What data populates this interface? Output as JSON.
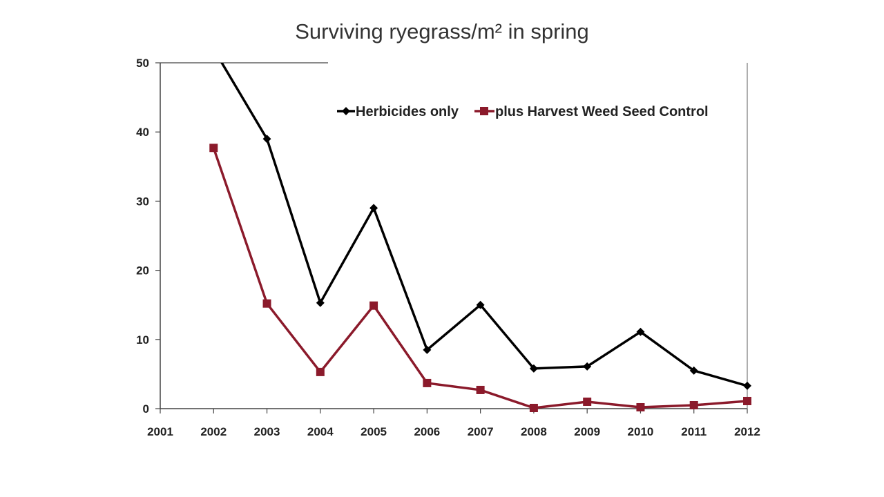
{
  "chart_data": {
    "type": "line",
    "title": "Surviving ryegrass/m² in spring",
    "xlabel": "",
    "ylabel": "",
    "x": [
      "2001",
      "2002",
      "2003",
      "2004",
      "2005",
      "2006",
      "2007",
      "2008",
      "2009",
      "2010",
      "2011",
      "2012"
    ],
    "ylim": [
      0,
      50
    ],
    "yticks": [
      0,
      10,
      20,
      30,
      40,
      50
    ],
    "grid": false,
    "legend_position": "top-right",
    "series": [
      {
        "name": "Herbicides only",
        "color": "#000000",
        "marker": "diamond",
        "values": [
          null,
          52,
          39,
          15.3,
          29,
          8.5,
          15,
          5.8,
          6.1,
          11.1,
          5.5,
          3.3
        ]
      },
      {
        "name": "plus Harvest Weed Seed Control",
        "color": "#8b1a2b",
        "marker": "square",
        "values": [
          null,
          37.7,
          15.2,
          5.3,
          14.9,
          3.7,
          2.7,
          0.1,
          1.0,
          0.2,
          0.5,
          1.1
        ]
      }
    ]
  }
}
